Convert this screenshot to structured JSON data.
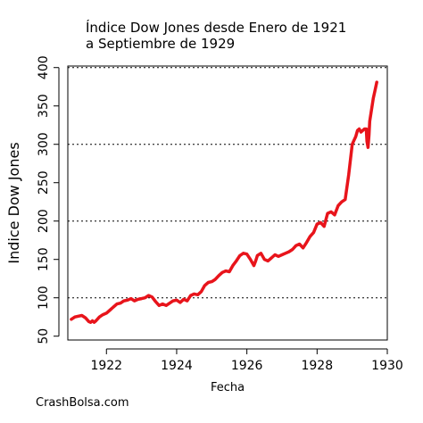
{
  "title": {
    "line1": "Índice Dow Jones desde Enero de 1921",
    "line2": "a Septiembre de 1929"
  },
  "watermark": "CrashBolsa.com",
  "chart_data": {
    "type": "line",
    "title": "Índice Dow Jones desde Enero de 1921 a Septiembre de 1929",
    "xlabel": "Fecha",
    "ylabel": "Indice Dow Jones",
    "xlim": [
      1920.9,
      1930.0
    ],
    "ylim": [
      45,
      402
    ],
    "x_ticks": [
      1922,
      1924,
      1926,
      1928,
      1930
    ],
    "y_ticks": [
      50,
      100,
      150,
      200,
      250,
      300,
      350,
      400
    ],
    "gridlines_y": [
      100,
      200,
      300,
      400
    ],
    "grid": "horizontal dotted at 100, 200, 300, 400",
    "line_color": "#e8141b",
    "series": [
      {
        "x": [
          1921.0,
          1921.1,
          1921.2,
          1921.3,
          1921.4,
          1921.5,
          1921.55,
          1921.6,
          1921.65,
          1921.7,
          1921.8,
          1921.9,
          1922.0,
          1922.1,
          1922.2,
          1922.3,
          1922.4,
          1922.5,
          1922.6,
          1922.7,
          1922.8,
          1922.9,
          1923.0,
          1923.1,
          1923.2,
          1923.3,
          1923.4,
          1923.5,
          1923.6,
          1923.7,
          1923.8,
          1923.9,
          1924.0,
          1924.1,
          1924.2,
          1924.3,
          1924.4,
          1924.5,
          1924.6,
          1924.7,
          1924.8,
          1924.9,
          1925.0,
          1925.1,
          1925.2,
          1925.3,
          1925.4,
          1925.5,
          1925.6,
          1925.7,
          1925.8,
          1925.9,
          1926.0,
          1926.1,
          1926.2,
          1926.25,
          1926.3,
          1926.4,
          1926.5,
          1926.6,
          1926.7,
          1926.8,
          1926.9,
          1927.0,
          1927.1,
          1927.2,
          1927.3,
          1927.4,
          1927.5,
          1927.6,
          1927.7,
          1927.8,
          1927.9,
          1928.0,
          1928.1,
          1928.2,
          1928.3,
          1928.4,
          1928.5,
          1928.6,
          1928.7,
          1928.8,
          1928.9,
          1929.0,
          1929.05,
          1929.1,
          1929.15,
          1929.2,
          1929.25,
          1929.3,
          1929.35,
          1929.4,
          1929.42,
          1929.45,
          1929.48,
          1929.5,
          1929.55,
          1929.6,
          1929.65,
          1929.7
        ],
        "y": [
          72,
          75,
          76,
          77,
          74,
          69,
          68,
          70,
          68,
          70,
          75,
          78,
          80,
          84,
          88,
          92,
          93,
          96,
          97,
          99,
          96,
          98,
          99,
          100,
          103,
          101,
          95,
          90,
          92,
          90,
          93,
          96,
          97,
          94,
          98,
          96,
          103,
          105,
          104,
          108,
          116,
          120,
          121,
          124,
          129,
          133,
          135,
          134,
          142,
          148,
          155,
          158,
          157,
          150,
          142,
          148,
          155,
          158,
          150,
          148,
          152,
          156,
          154,
          156,
          158,
          160,
          163,
          168,
          170,
          165,
          172,
          180,
          185,
          196,
          198,
          193,
          210,
          212,
          208,
          220,
          225,
          228,
          260,
          300,
          305,
          310,
          318,
          320,
          316,
          318,
          320,
          320,
          304,
          296,
          312,
          330,
          345,
          360,
          370,
          381
        ]
      }
    ]
  }
}
